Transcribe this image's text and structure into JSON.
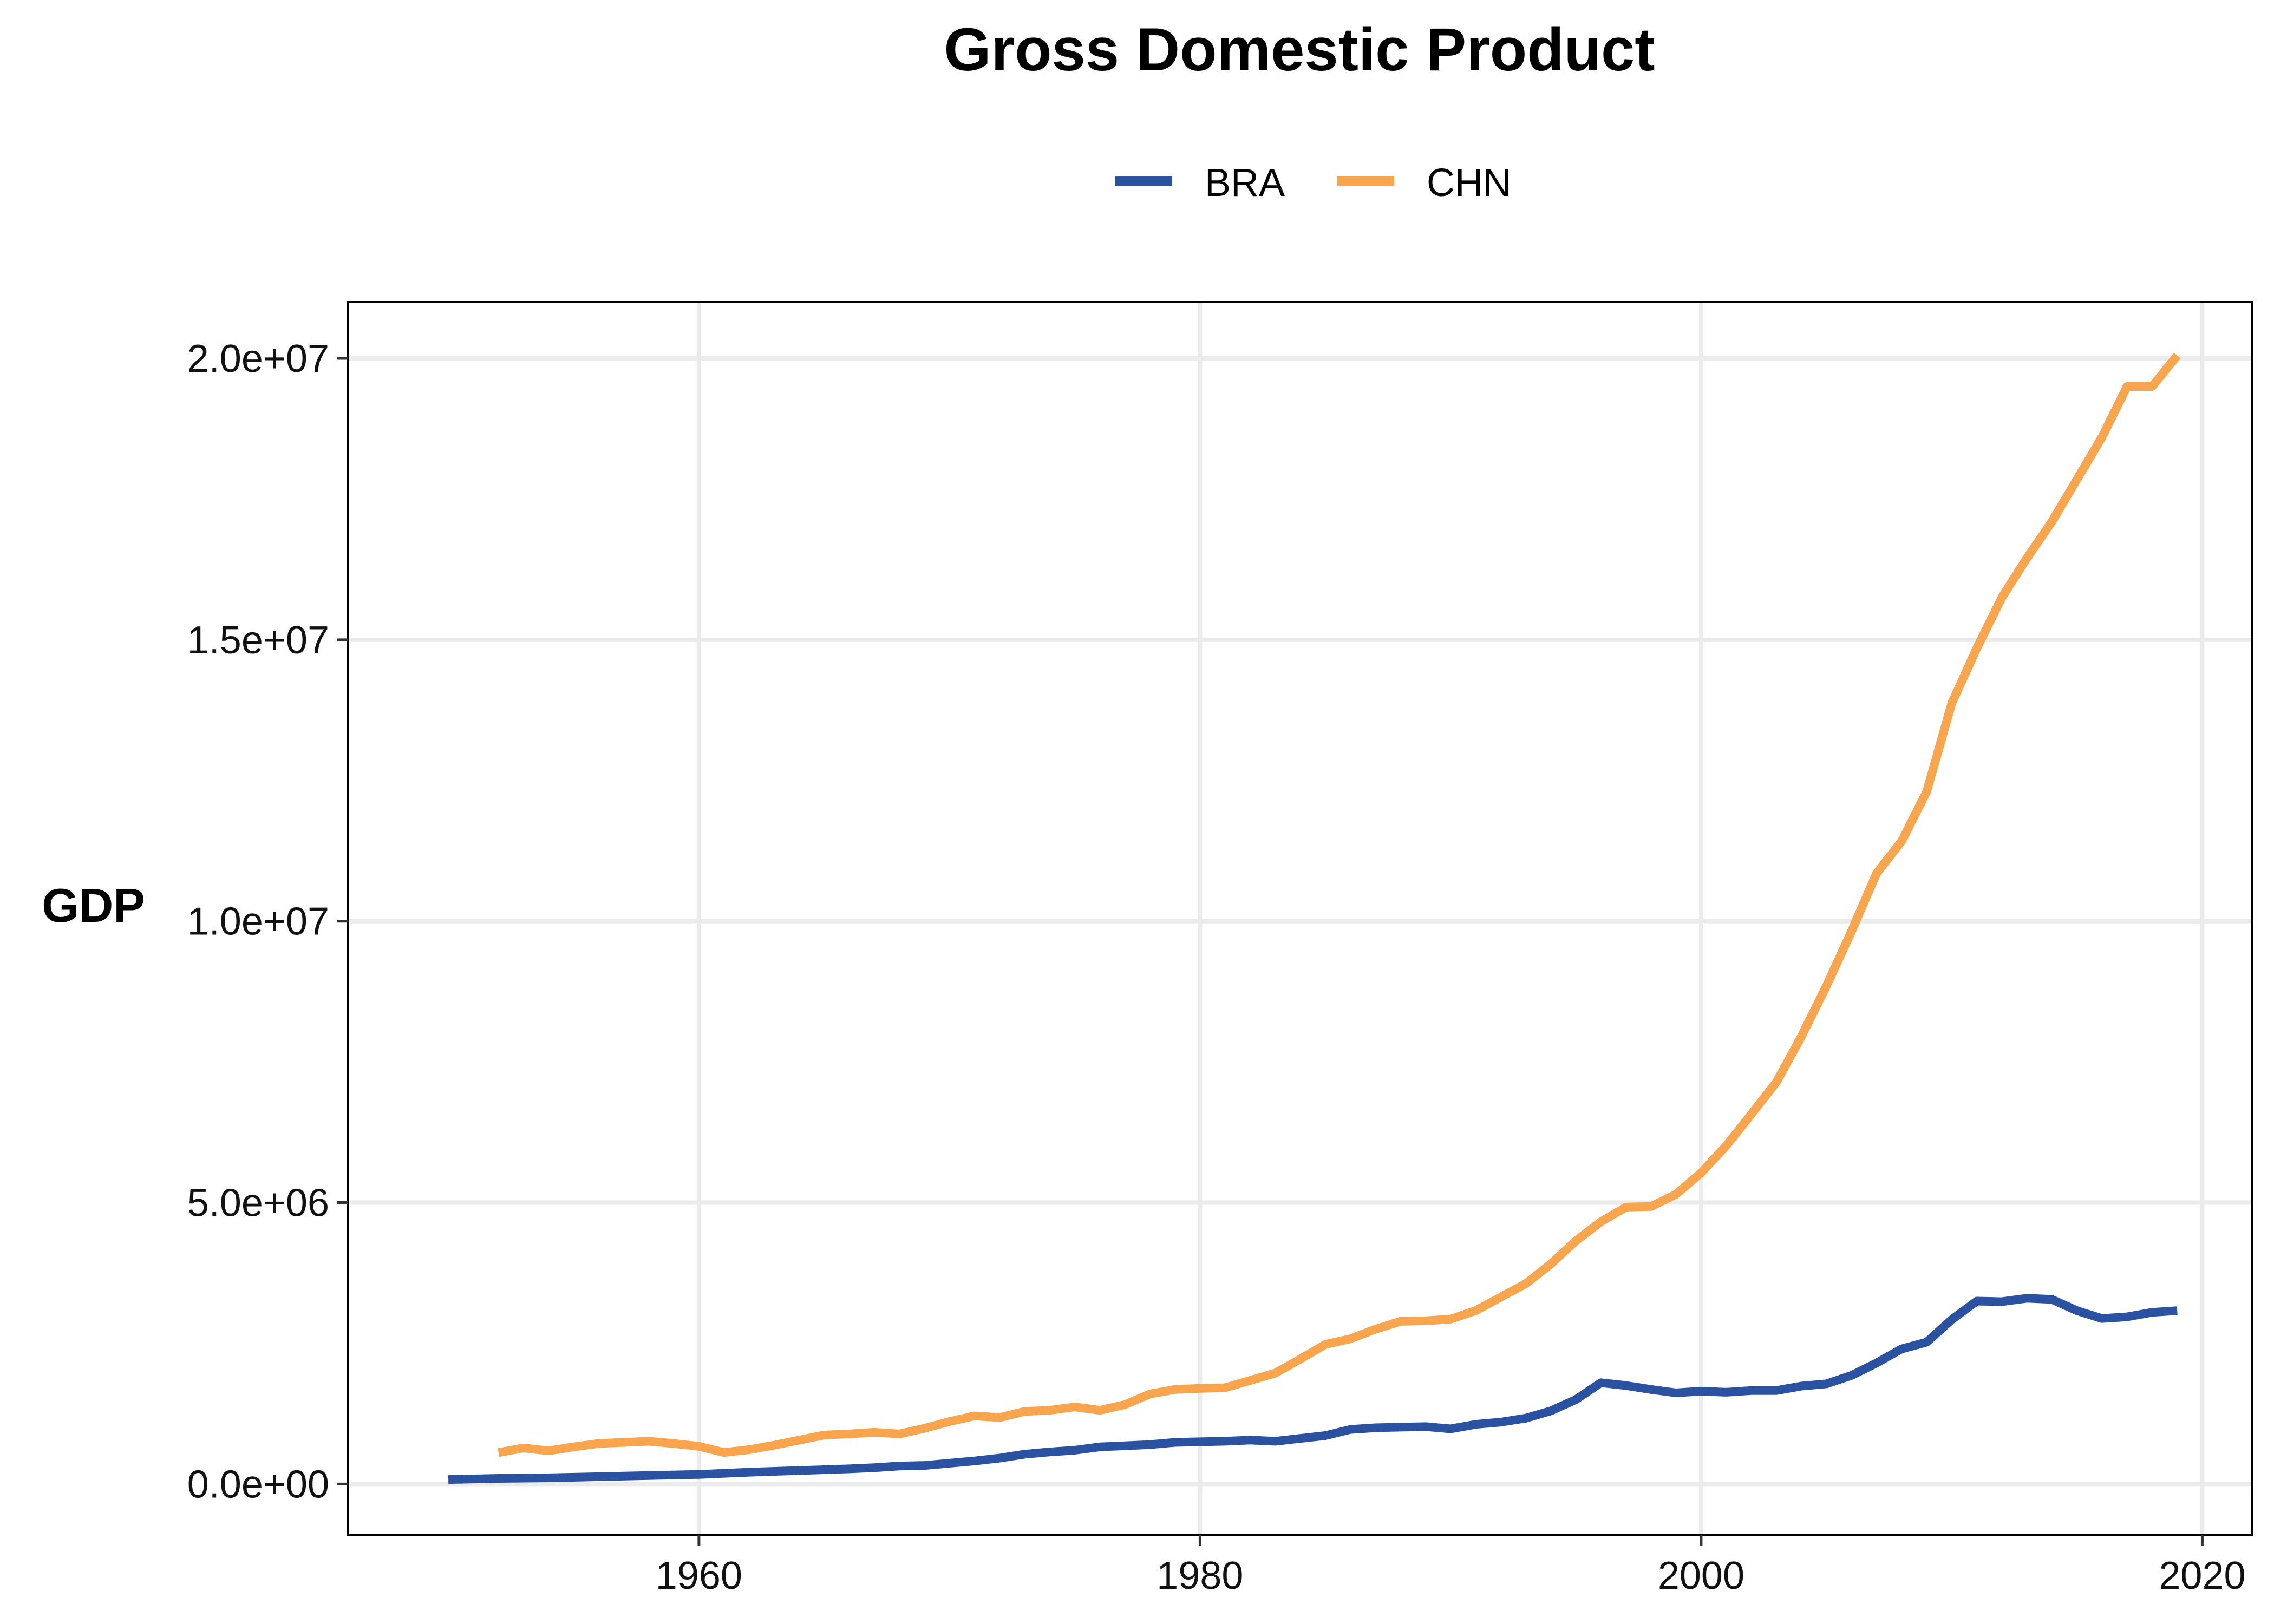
{
  "chart_data": {
    "type": "line",
    "title": "Gross Domestic Product",
    "xlabel": "",
    "ylabel": "GDP",
    "xlim": [
      1946,
      2022
    ],
    "ylim": [
      -900000,
      21000000
    ],
    "x_ticks": [
      1960,
      1980,
      2000,
      2020
    ],
    "x_tick_labels": [
      "1960",
      "1980",
      "2000",
      "2020"
    ],
    "y_ticks": [
      0,
      5000000,
      10000000,
      15000000,
      20000000
    ],
    "y_tick_labels": [
      "0.0e+00",
      "5.0e+06",
      "1.0e+07",
      "1.5e+07",
      "2.0e+07"
    ],
    "grid": true,
    "legend_position": "top",
    "series": [
      {
        "name": "BRA",
        "color": "#2a52a0",
        "x": [
          1950,
          1952,
          1954,
          1956,
          1958,
          1960,
          1962,
          1964,
          1966,
          1967,
          1968,
          1969,
          1970,
          1971,
          1972,
          1973,
          1974,
          1975,
          1976,
          1977,
          1978,
          1979,
          1980,
          1981,
          1982,
          1983,
          1984,
          1985,
          1986,
          1987,
          1988,
          1989,
          1990,
          1991,
          1992,
          1993,
          1994,
          1995,
          1996,
          1997,
          1998,
          1999,
          2000,
          2001,
          2002,
          2003,
          2004,
          2005,
          2006,
          2007,
          2008,
          2009,
          2010,
          2011,
          2012,
          2013,
          2014,
          2015,
          2016,
          2017,
          2018,
          2019
        ],
        "y": [
          80000,
          100000,
          110000,
          130000,
          150000,
          170000,
          210000,
          240000,
          270000,
          290000,
          320000,
          330000,
          370000,
          410000,
          460000,
          530000,
          570000,
          600000,
          660000,
          680000,
          700000,
          740000,
          750000,
          760000,
          780000,
          760000,
          810000,
          860000,
          970000,
          1000000,
          1010000,
          1020000,
          980000,
          1060000,
          1100000,
          1170000,
          1300000,
          1500000,
          1800000,
          1750000,
          1680000,
          1620000,
          1650000,
          1630000,
          1660000,
          1660000,
          1740000,
          1780000,
          1930000,
          2150000,
          2400000,
          2520000,
          2920000,
          3250000,
          3240000,
          3300000,
          3280000,
          3080000,
          2940000,
          2970000,
          3050000,
          3080000
        ]
      },
      {
        "name": "CHN",
        "color": "#f9a54e",
        "x": [
          1952,
          1953,
          1954,
          1955,
          1956,
          1957,
          1958,
          1959,
          1960,
          1961,
          1962,
          1963,
          1964,
          1965,
          1966,
          1967,
          1968,
          1969,
          1970,
          1971,
          1972,
          1973,
          1974,
          1975,
          1976,
          1977,
          1978,
          1979,
          1980,
          1981,
          1982,
          1983,
          1984,
          1985,
          1986,
          1987,
          1988,
          1989,
          1990,
          1991,
          1992,
          1993,
          1994,
          1995,
          1996,
          1997,
          1998,
          1999,
          2000,
          2001,
          2002,
          2003,
          2004,
          2005,
          2006,
          2007,
          2008,
          2009,
          2010,
          2011,
          2012,
          2013,
          2014,
          2015,
          2016,
          2017,
          2018,
          2019
        ],
        "y": [
          560000,
          640000,
          590000,
          660000,
          720000,
          740000,
          760000,
          720000,
          670000,
          560000,
          610000,
          690000,
          780000,
          870000,
          890000,
          920000,
          890000,
          990000,
          1110000,
          1210000,
          1180000,
          1290000,
          1310000,
          1370000,
          1310000,
          1410000,
          1600000,
          1680000,
          1700000,
          1710000,
          1840000,
          1970000,
          2220000,
          2480000,
          2580000,
          2750000,
          2890000,
          2900000,
          2930000,
          3080000,
          3320000,
          3560000,
          3910000,
          4320000,
          4660000,
          4920000,
          4930000,
          5150000,
          5530000,
          6010000,
          6570000,
          7140000,
          7950000,
          8850000,
          9820000,
          10850000,
          11420000,
          12300000,
          13870000,
          14850000,
          15750000,
          16450000,
          17100000,
          17850000,
          18600000,
          19500000,
          19500000,
          20050000
        ]
      }
    ]
  }
}
